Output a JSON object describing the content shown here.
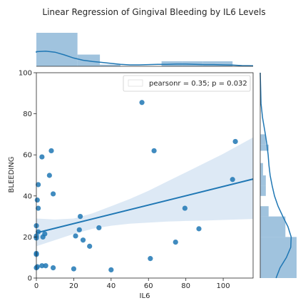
{
  "chart_data": {
    "type": "scatter",
    "title": "Linear Regression of Gingival Bleeding by IL6 Levels",
    "xlabel": "IL6",
    "ylabel": "BLEEDING",
    "xlim": [
      0,
      116
    ],
    "ylim": [
      0,
      100
    ],
    "xticks": [
      "0",
      "20",
      "40",
      "60",
      "80",
      "100"
    ],
    "yticks": [
      "0",
      "20",
      "40",
      "60",
      "80",
      "100"
    ],
    "xtick_values": [
      0,
      20,
      40,
      60,
      80,
      100
    ],
    "ytick_values": [
      0,
      20,
      40,
      60,
      80,
      100
    ],
    "legend": {
      "text": "pearsonr = 0.35; p = 0.032",
      "placement": "top-right"
    },
    "grid": false,
    "colors": {
      "points": "#1f77b4",
      "line": "#1f77b4",
      "band": "#c6dbef",
      "hist": "#8fb9d8"
    },
    "points": [
      {
        "x": 0.0,
        "y": 5.0
      },
      {
        "x": 0.0,
        "y": 11.5
      },
      {
        "x": 0.0,
        "y": 12.0
      },
      {
        "x": 0.0,
        "y": 19.5
      },
      {
        "x": 0.0,
        "y": 20.5
      },
      {
        "x": 0.0,
        "y": 25.5
      },
      {
        "x": 0.5,
        "y": 38.0
      },
      {
        "x": 0.5,
        "y": 5.5
      },
      {
        "x": 1.0,
        "y": 34.0
      },
      {
        "x": 1.0,
        "y": 45.5
      },
      {
        "x": 1.0,
        "y": 22.5
      },
      {
        "x": 3.0,
        "y": 59.0
      },
      {
        "x": 3.0,
        "y": 6.0
      },
      {
        "x": 3.5,
        "y": 20.0
      },
      {
        "x": 4.5,
        "y": 21.5
      },
      {
        "x": 5.0,
        "y": 6.0
      },
      {
        "x": 7.0,
        "y": 50.0
      },
      {
        "x": 8.0,
        "y": 62.0
      },
      {
        "x": 9.0,
        "y": 41.0
      },
      {
        "x": 9.0,
        "y": 5.0
      },
      {
        "x": 20.0,
        "y": 4.5
      },
      {
        "x": 21.0,
        "y": 20.5
      },
      {
        "x": 23.0,
        "y": 23.5
      },
      {
        "x": 23.5,
        "y": 30.0
      },
      {
        "x": 25.0,
        "y": 18.5
      },
      {
        "x": 28.5,
        "y": 15.5
      },
      {
        "x": 33.5,
        "y": 24.5
      },
      {
        "x": 40.0,
        "y": 4.0
      },
      {
        "x": 56.5,
        "y": 85.5
      },
      {
        "x": 61.0,
        "y": 9.5
      },
      {
        "x": 63.0,
        "y": 62.0
      },
      {
        "x": 74.5,
        "y": 17.5
      },
      {
        "x": 79.5,
        "y": 34.0
      },
      {
        "x": 87.0,
        "y": 24.0
      },
      {
        "x": 105.0,
        "y": 48.0
      },
      {
        "x": 106.5,
        "y": 66.5
      }
    ],
    "regression": {
      "intercept": 22.0,
      "slope": 0.226
    },
    "confidence_band": {
      "x": [
        0,
        10,
        20,
        30,
        40,
        50,
        60,
        70,
        80,
        90,
        100,
        116
      ],
      "lower": [
        15.5,
        18.5,
        21.5,
        24.0,
        25.5,
        26.5,
        27.0,
        27.5,
        27.8,
        28.0,
        28.3,
        28.8
      ],
      "upper": [
        29.0,
        28.5,
        29.0,
        31.5,
        35.0,
        38.5,
        42.5,
        47.0,
        51.5,
        56.0,
        60.5,
        68.5
      ]
    },
    "marginal_x": {
      "bin_edges": [
        0,
        22,
        34,
        45,
        67,
        78,
        89,
        105,
        116
      ],
      "counts": [
        20,
        7,
        1,
        0,
        3,
        3,
        3,
        0
      ],
      "kde": {
        "x": [
          -5,
          0,
          5,
          10,
          15,
          20,
          25,
          30,
          35,
          40,
          45,
          50,
          55,
          60,
          65,
          70,
          75,
          80,
          85,
          90,
          95,
          100,
          105,
          110,
          116
        ],
        "y": [
          0.56,
          0.6,
          0.62,
          0.58,
          0.47,
          0.34,
          0.25,
          0.2,
          0.16,
          0.12,
          0.08,
          0.06,
          0.06,
          0.07,
          0.08,
          0.08,
          0.09,
          0.09,
          0.08,
          0.07,
          0.07,
          0.06,
          0.05,
          0.03,
          0.02
        ]
      }
    },
    "marginal_y": {
      "bin_edges": [
        0,
        20,
        30,
        35,
        40,
        45,
        50,
        56,
        62,
        65,
        70
      ],
      "counts": [
        13,
        9,
        3,
        0,
        2,
        2,
        1,
        0,
        3,
        2
      ],
      "kde": {
        "y": [
          100,
          92,
          85,
          78,
          70,
          65,
          60,
          55,
          50,
          45,
          40,
          35,
          30,
          25,
          20,
          15,
          10,
          5,
          0
        ],
        "x": [
          0.0,
          0.01,
          0.02,
          0.06,
          0.13,
          0.17,
          0.2,
          0.22,
          0.25,
          0.3,
          0.36,
          0.45,
          0.57,
          0.7,
          0.78,
          0.77,
          0.66,
          0.5,
          0.4
        ]
      }
    }
  }
}
